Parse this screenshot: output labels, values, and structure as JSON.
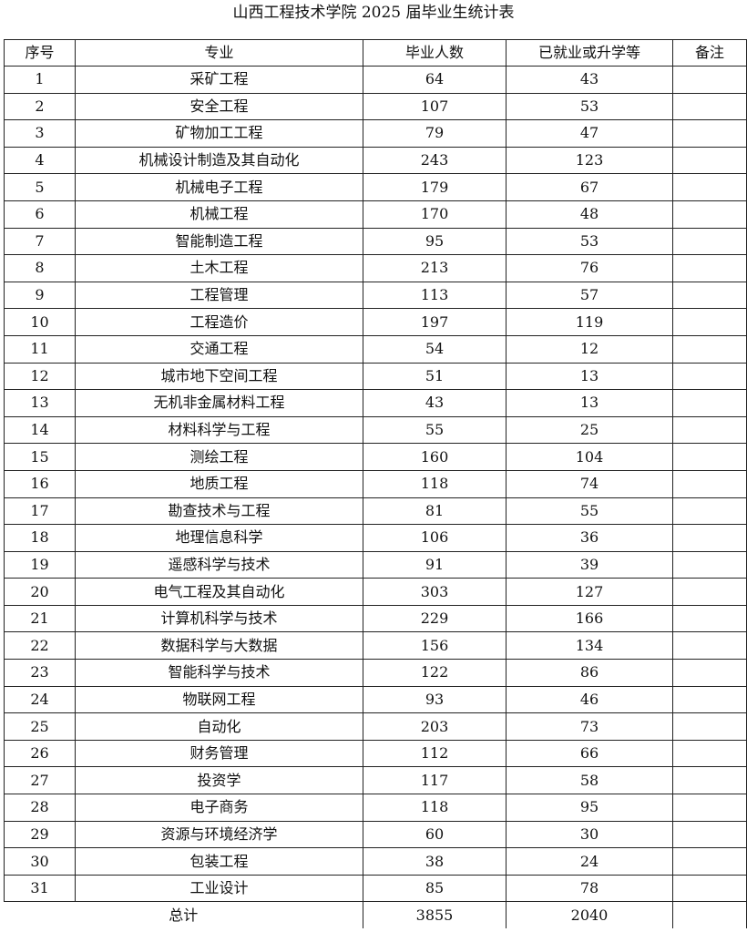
{
  "title": "山西工程技术学院 2025 届毕业生统计表",
  "headers": [
    "序号",
    "专业",
    "毕业人数",
    "已就业或升学等",
    "备注"
  ],
  "rows": [
    [
      "1",
      "采矿工程",
      "64",
      "43",
      ""
    ],
    [
      "2",
      "安全工程",
      "107",
      "53",
      ""
    ],
    [
      "3",
      "矿物加工工程",
      "79",
      "47",
      ""
    ],
    [
      "4",
      "机械设计制造及其自动化",
      "243",
      "123",
      ""
    ],
    [
      "5",
      "机械电子工程",
      "179",
      "67",
      ""
    ],
    [
      "6",
      "机械工程",
      "170",
      "48",
      ""
    ],
    [
      "7",
      "智能制造工程",
      "95",
      "53",
      ""
    ],
    [
      "8",
      "土木工程",
      "213",
      "76",
      ""
    ],
    [
      "9",
      "工程管理",
      "113",
      "57",
      ""
    ],
    [
      "10",
      "工程造价",
      "197",
      "119",
      ""
    ],
    [
      "11",
      "交通工程",
      "54",
      "12",
      ""
    ],
    [
      "12",
      "城市地下空间工程",
      "51",
      "13",
      ""
    ],
    [
      "13",
      "无机非金属材料工程",
      "43",
      "13",
      ""
    ],
    [
      "14",
      "材料科学与工程",
      "55",
      "25",
      ""
    ],
    [
      "15",
      "测绘工程",
      "160",
      "104",
      ""
    ],
    [
      "16",
      "地质工程",
      "118",
      "74",
      ""
    ],
    [
      "17",
      "勘查技术与工程",
      "81",
      "55",
      ""
    ],
    [
      "18",
      "地理信息科学",
      "106",
      "36",
      ""
    ],
    [
      "19",
      "遥感科学与技术",
      "91",
      "39",
      ""
    ],
    [
      "20",
      "电气工程及其自动化",
      "303",
      "127",
      ""
    ],
    [
      "21",
      "计算机科学与技术",
      "229",
      "166",
      ""
    ],
    [
      "22",
      "数据科学与大数据",
      "156",
      "134",
      ""
    ],
    [
      "23",
      "智能科学与技术",
      "122",
      "86",
      ""
    ],
    [
      "24",
      "物联网工程",
      "93",
      "46",
      ""
    ],
    [
      "25",
      "自动化",
      "203",
      "73",
      ""
    ],
    [
      "26",
      "财务管理",
      "112",
      "66",
      ""
    ],
    [
      "27",
      "投资学",
      "117",
      "58",
      ""
    ],
    [
      "28",
      "电子商务",
      "118",
      "95",
      ""
    ],
    [
      "29",
      "资源与环境经济学",
      "60",
      "30",
      ""
    ],
    [
      "30",
      "包装工程",
      "38",
      "24",
      ""
    ],
    [
      "31",
      "工业设计",
      "85",
      "78",
      ""
    ]
  ],
  "total": {
    "label": "总计",
    "graduates": "3855",
    "employed": "2040",
    "note": ""
  }
}
